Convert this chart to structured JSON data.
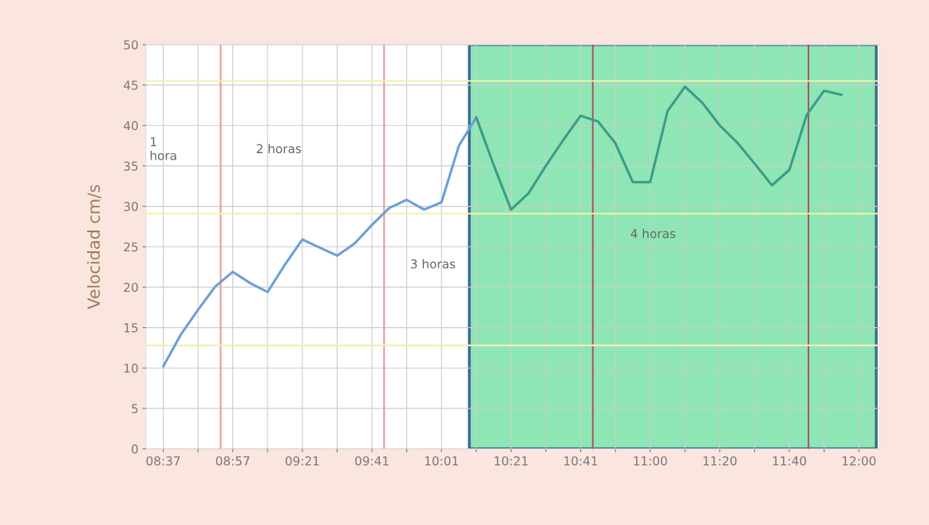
{
  "chart_data": {
    "type": "line",
    "ylabel": "Velocidad cm/s",
    "categories": [
      "08:37",
      null,
      null,
      null,
      "08:57",
      null,
      null,
      null,
      "09:21",
      null,
      null,
      null,
      "09:41",
      null,
      null,
      null,
      "10:01",
      null,
      null,
      null,
      "10:21",
      null,
      null,
      null,
      "10:41",
      null,
      null,
      null,
      "11:00",
      null,
      null,
      null,
      "11:20",
      null,
      null,
      null,
      "11:40",
      null,
      null,
      null,
      "12:00"
    ],
    "series": [
      {
        "color": "#6a9fd8",
        "values": [
          10.2,
          14.1,
          17.2,
          20.1,
          21.9,
          20.5,
          19.4,
          22.8,
          25.9,
          24.9,
          23.9,
          25.4,
          27.7,
          29.8,
          30.8,
          29.6,
          30.5,
          37.5,
          41.0,
          null,
          null,
          null,
          null,
          null,
          null,
          null,
          null,
          null,
          null,
          null,
          null,
          null,
          null,
          null,
          null,
          null,
          null,
          null,
          null,
          null,
          null
        ]
      },
      {
        "color": "#3a9c88",
        "values": [
          null,
          null,
          null,
          null,
          null,
          null,
          null,
          null,
          null,
          null,
          null,
          null,
          null,
          null,
          null,
          null,
          null,
          null,
          41.0,
          35.1,
          29.6,
          31.6,
          35.0,
          38.2,
          41.2,
          40.5,
          37.8,
          33.0,
          33.0,
          41.8,
          44.8,
          42.8,
          40.0,
          37.9,
          35.3,
          32.6,
          34.5,
          41.3,
          44.3,
          43.8,
          null
        ]
      }
    ],
    "ylim": [
      0,
      50
    ],
    "yticks": [
      0,
      5,
      10,
      15,
      20,
      25,
      30,
      35,
      40,
      45,
      50
    ],
    "grid": true,
    "ref_lines": [
      {
        "axis": "y",
        "value": 45.5,
        "color": "#f4f0b0"
      },
      {
        "axis": "y",
        "value": 29.1,
        "color": "#f4f0b0"
      },
      {
        "axis": "y",
        "value": 12.8,
        "color": "#f4f0b0"
      }
    ],
    "annotations": [
      "1\nhora",
      "2 horas",
      "3 horas",
      "4 horas"
    ]
  }
}
